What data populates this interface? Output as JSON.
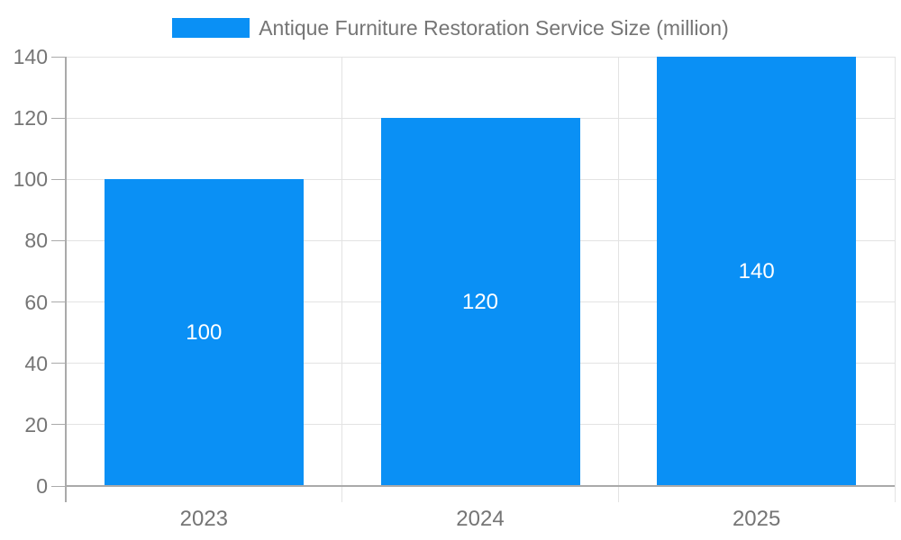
{
  "legend": {
    "label": "Antique Furniture Restoration Service Size (million)"
  },
  "chart_data": {
    "type": "bar",
    "title": "Antique Furniture Restoration Service Size (million)",
    "categories": [
      "2023",
      "2024",
      "2025"
    ],
    "series": [
      {
        "name": "Antique Furniture Restoration Service Size (million)",
        "values": [
          100,
          120,
          140
        ]
      }
    ],
    "data_labels": [
      "100",
      "120",
      "140"
    ],
    "xlabel": "",
    "ylabel": "",
    "ylim": [
      0,
      140
    ],
    "yticks": [
      0,
      20,
      40,
      60,
      80,
      100,
      120,
      140
    ],
    "grid": true,
    "legend_position": "top-center",
    "colors": {
      "bar": "#0a90f5",
      "grid": "#e3e3e3",
      "axis": "#aaaaaa",
      "tick_text": "#757575",
      "data_label": "#ffffff",
      "background": "#ffffff"
    }
  }
}
